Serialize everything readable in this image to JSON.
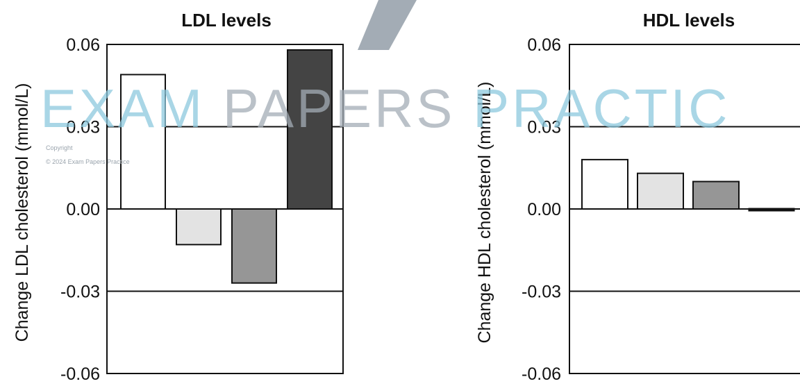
{
  "watermark": {
    "text_exam": "EXAM ",
    "text_papers": "PAPERS ",
    "text_practice": "PRACTIC",
    "copyright_line1": "Copyright",
    "copyright_line2": "© 2024 Exam Papers Practice",
    "colors": {
      "teal": "#8cc8de",
      "grey": "#a3acb5"
    }
  },
  "chart_data": [
    {
      "type": "bar",
      "title": "LDL levels",
      "ylabel": "Change LDL cholesterol (mmol/L)",
      "xlabel": "",
      "ylim": [
        -0.06,
        0.06
      ],
      "yticks": [
        "0.06",
        "0.03",
        "0.00",
        "-0.03",
        "-0.06"
      ],
      "grid": true,
      "values": [
        0.049,
        -0.013,
        -0.027,
        0.058
      ],
      "colors": [
        "#ffffff",
        "#e3e3e3",
        "#969696",
        "#444444"
      ]
    },
    {
      "type": "bar",
      "title": "HDL levels",
      "ylabel": "Change HDL cholesterol (mmol/L)",
      "xlabel": "",
      "ylim": [
        -0.06,
        0.06
      ],
      "yticks": [
        "0.06",
        "0.03",
        "0.00",
        "-0.03",
        "-0.06"
      ],
      "grid": true,
      "values": [
        0.018,
        0.013,
        0.01,
        -0.0005
      ],
      "colors": [
        "#ffffff",
        "#e3e3e3",
        "#969696",
        "#111111"
      ]
    }
  ]
}
